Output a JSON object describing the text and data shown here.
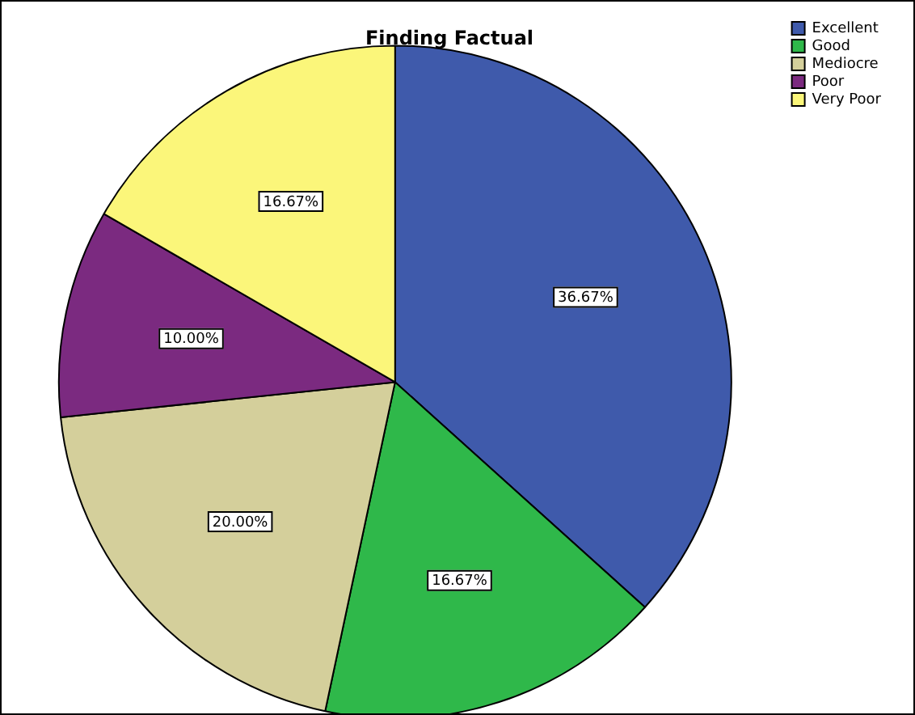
{
  "chart_data": {
    "type": "pie",
    "title": "Finding Factual",
    "categories": [
      "Excellent",
      "Good",
      "Mediocre",
      "Poor",
      "Very Poor"
    ],
    "values": [
      36.67,
      16.67,
      20.0,
      10.0,
      16.67
    ],
    "value_labels": [
      "36.67%",
      "16.67%",
      "20.00%",
      "10.00%",
      "16.67%"
    ],
    "colors": [
      "#3f5aab",
      "#2fb84a",
      "#d4cf9b",
      "#7b2a80",
      "#fbf67a"
    ],
    "legend": "top right"
  }
}
